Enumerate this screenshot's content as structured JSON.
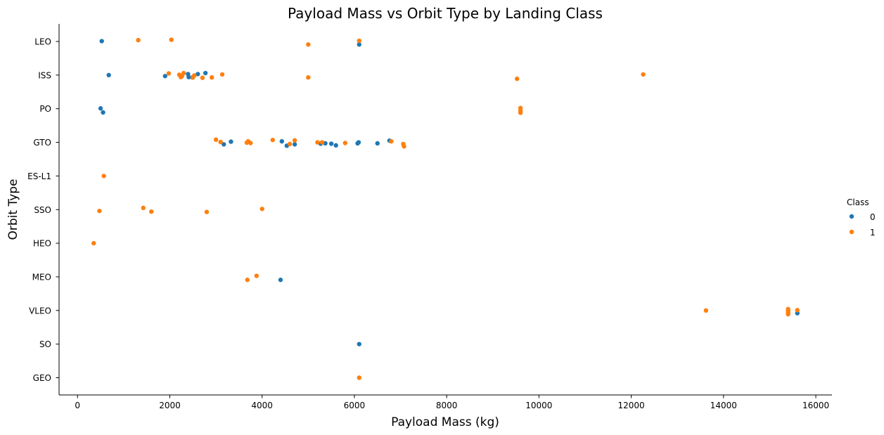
{
  "chart_data": {
    "type": "scatter",
    "title": "Payload Mass vs Orbit Type by Landing Class",
    "xlabel": "Payload Mass (kg)",
    "ylabel": "Orbit Type",
    "xlim": [
      -400,
      16350
    ],
    "x_ticks": [
      0,
      2000,
      4000,
      6000,
      8000,
      10000,
      12000,
      14000,
      16000
    ],
    "categories": [
      "LEO",
      "ISS",
      "PO",
      "GTO",
      "ES-L1",
      "SSO",
      "HEO",
      "MEO",
      "VLEO",
      "SO",
      "GEO"
    ],
    "grid": false,
    "legend": {
      "title": "Class",
      "position": "right",
      "entries": [
        {
          "label": "0",
          "color": "#1f77b4"
        },
        {
          "label": "1",
          "color": "#ff7f0e"
        }
      ]
    },
    "series": [
      {
        "name": "0",
        "color": "#1f77b4",
        "points": [
          {
            "x": 525,
            "y": "LEO",
            "j": -0.01
          },
          {
            "x": 6104,
            "y": "LEO",
            "j": 0.09
          },
          {
            "x": 677,
            "y": "ISS",
            "j": 0.0
          },
          {
            "x": 1898,
            "y": "ISS",
            "j": 0.03
          },
          {
            "x": 2395,
            "y": "ISS",
            "j": -0.03
          },
          {
            "x": 2410,
            "y": "ISS",
            "j": 0.06
          },
          {
            "x": 2490,
            "y": "ISS",
            "j": 0.07
          },
          {
            "x": 2607,
            "y": "ISS",
            "j": -0.03
          },
          {
            "x": 2772,
            "y": "ISS",
            "j": -0.06
          },
          {
            "x": 500,
            "y": "PO",
            "j": -0.01
          },
          {
            "x": 553,
            "y": "PO",
            "j": 0.11
          },
          {
            "x": 3170,
            "y": "GTO",
            "j": 0.06
          },
          {
            "x": 3325,
            "y": "GTO",
            "j": -0.02
          },
          {
            "x": 4428,
            "y": "GTO",
            "j": -0.03
          },
          {
            "x": 4535,
            "y": "GTO",
            "j": 0.1
          },
          {
            "x": 4707,
            "y": "GTO",
            "j": 0.06
          },
          {
            "x": 5271,
            "y": "GTO",
            "j": 0.04
          },
          {
            "x": 5370,
            "y": "GTO",
            "j": 0.03
          },
          {
            "x": 5500,
            "y": "GTO",
            "j": 0.04
          },
          {
            "x": 5600,
            "y": "GTO",
            "j": 0.09
          },
          {
            "x": 6070,
            "y": "GTO",
            "j": 0.03
          },
          {
            "x": 6092,
            "y": "GTO",
            "j": 0.0
          },
          {
            "x": 6500,
            "y": "GTO",
            "j": 0.03
          },
          {
            "x": 6761,
            "y": "GTO",
            "j": -0.05
          },
          {
            "x": 4400,
            "y": "MEO",
            "j": 0.09
          },
          {
            "x": 15600,
            "y": "VLEO",
            "j": 0.08
          },
          {
            "x": 6104,
            "y": "SO",
            "j": 0.0
          }
        ]
      },
      {
        "name": "1",
        "color": "#ff7f0e",
        "points": [
          {
            "x": 1316,
            "y": "LEO",
            "j": -0.04
          },
          {
            "x": 2034,
            "y": "LEO",
            "j": -0.05
          },
          {
            "x": 5000,
            "y": "LEO",
            "j": 0.09
          },
          {
            "x": 6104,
            "y": "LEO",
            "j": -0.02
          },
          {
            "x": 1977,
            "y": "ISS",
            "j": -0.05
          },
          {
            "x": 2205,
            "y": "ISS",
            "j": -0.01
          },
          {
            "x": 2240,
            "y": "ISS",
            "j": 0.06
          },
          {
            "x": 2265,
            "y": "ISS",
            "j": 0.03
          },
          {
            "x": 2300,
            "y": "ISS",
            "j": -0.06
          },
          {
            "x": 2500,
            "y": "ISS",
            "j": 0.07
          },
          {
            "x": 2530,
            "y": "ISS",
            "j": 0.01
          },
          {
            "x": 2708,
            "y": "ISS",
            "j": 0.08
          },
          {
            "x": 2910,
            "y": "ISS",
            "j": 0.07
          },
          {
            "x": 3136,
            "y": "ISS",
            "j": -0.02
          },
          {
            "x": 5000,
            "y": "ISS",
            "j": 0.07
          },
          {
            "x": 9525,
            "y": "ISS",
            "j": 0.11
          },
          {
            "x": 12259,
            "y": "ISS",
            "j": -0.02
          },
          {
            "x": 9600,
            "y": "PO",
            "j": 0.12
          },
          {
            "x": 9600,
            "y": "PO",
            "j": 0.06
          },
          {
            "x": 9600,
            "y": "PO",
            "j": -0.02
          },
          {
            "x": 3000,
            "y": "GTO",
            "j": -0.08
          },
          {
            "x": 3100,
            "y": "GTO",
            "j": -0.01
          },
          {
            "x": 3669,
            "y": "GTO",
            "j": 0.01
          },
          {
            "x": 3696,
            "y": "GTO",
            "j": -0.03
          },
          {
            "x": 3750,
            "y": "GTO",
            "j": 0.02
          },
          {
            "x": 4230,
            "y": "GTO",
            "j": -0.07
          },
          {
            "x": 4600,
            "y": "GTO",
            "j": 0.05
          },
          {
            "x": 4707,
            "y": "GTO",
            "j": -0.06
          },
          {
            "x": 5200,
            "y": "GTO",
            "j": 0.0
          },
          {
            "x": 5300,
            "y": "GTO",
            "j": 0.0
          },
          {
            "x": 5800,
            "y": "GTO",
            "j": 0.02
          },
          {
            "x": 6800,
            "y": "GTO",
            "j": -0.03
          },
          {
            "x": 7060,
            "y": "GTO",
            "j": 0.05
          },
          {
            "x": 7076,
            "y": "GTO",
            "j": 0.12
          },
          {
            "x": 570,
            "y": "ES-L1",
            "j": 0.0
          },
          {
            "x": 475,
            "y": "SSO",
            "j": 0.04
          },
          {
            "x": 1425,
            "y": "SSO",
            "j": -0.05
          },
          {
            "x": 1600,
            "y": "SSO",
            "j": 0.06
          },
          {
            "x": 2800,
            "y": "SSO",
            "j": 0.07
          },
          {
            "x": 4000,
            "y": "SSO",
            "j": -0.02
          },
          {
            "x": 350,
            "y": "HEO",
            "j": 0.0
          },
          {
            "x": 3681,
            "y": "MEO",
            "j": 0.09
          },
          {
            "x": 3880,
            "y": "MEO",
            "j": -0.03
          },
          {
            "x": 13620,
            "y": "VLEO",
            "j": 0.0
          },
          {
            "x": 15400,
            "y": "VLEO",
            "j": 0.11
          },
          {
            "x": 15400,
            "y": "VLEO",
            "j": 0.07
          },
          {
            "x": 15400,
            "y": "VLEO",
            "j": 0.04
          },
          {
            "x": 15400,
            "y": "VLEO",
            "j": 0.0
          },
          {
            "x": 15400,
            "y": "VLEO",
            "j": -0.04
          },
          {
            "x": 15600,
            "y": "VLEO",
            "j": -0.01
          },
          {
            "x": 6104,
            "y": "GEO",
            "j": 0.0
          }
        ]
      }
    ]
  }
}
